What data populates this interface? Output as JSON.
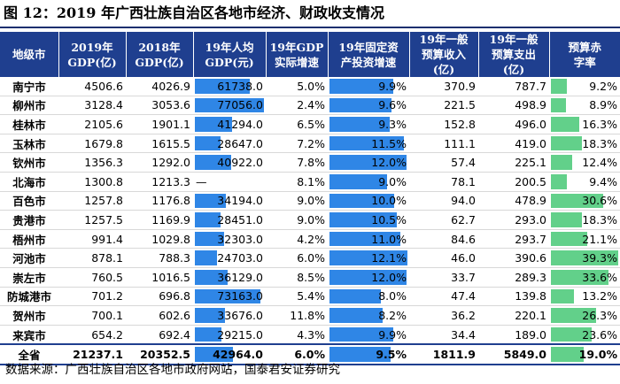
{
  "title": "图 12：2019 年广西壮族自治区各地市经济、财政收支情况",
  "colors": {
    "header": "#1f3f8f",
    "bar_blue": "#2f86e6",
    "bar_green": "#62d08a"
  },
  "columns": [
    "地级市",
    "2019年\nGDP(亿)",
    "2018年\nGDP(亿)",
    "19年人均\nGDP(元)",
    "19年GDP\n实际增速",
    "19年固定资\n产投资增速",
    "19年一般\n预算收入\n(亿)",
    "19年一般\n预算支出\n(亿)",
    "预算赤\n字率"
  ],
  "rows": [
    {
      "city": "南宁市",
      "gdp2019": "4506.6",
      "gdp2018": "4026.9",
      "pc": "61738.0",
      "pc_v": 61738,
      "growth": "5.0%",
      "fai": "9.9%",
      "fai_v": 9.9,
      "rev": "370.9",
      "exp": "787.7",
      "def": "9.2%",
      "def_v": 9.2
    },
    {
      "city": "柳州市",
      "gdp2019": "3128.4",
      "gdp2018": "3053.6",
      "pc": "77056.0",
      "pc_v": 77056,
      "growth": "2.4%",
      "fai": "9.6%",
      "fai_v": 9.6,
      "rev": "221.5",
      "exp": "498.9",
      "def": "8.9%",
      "def_v": 8.9
    },
    {
      "city": "桂林市",
      "gdp2019": "2105.6",
      "gdp2018": "1901.1",
      "pc": "41294.0",
      "pc_v": 41294,
      "growth": "6.5%",
      "fai": "9.3%",
      "fai_v": 9.3,
      "rev": "152.8",
      "exp": "496.0",
      "def": "16.3%",
      "def_v": 16.3
    },
    {
      "city": "玉林市",
      "gdp2019": "1679.8",
      "gdp2018": "1615.5",
      "pc": "28647.0",
      "pc_v": 28647,
      "growth": "7.2%",
      "fai": "11.5%",
      "fai_v": 11.5,
      "rev": "111.1",
      "exp": "419.0",
      "def": "18.3%",
      "def_v": 18.3
    },
    {
      "city": "钦州市",
      "gdp2019": "1356.3",
      "gdp2018": "1292.0",
      "pc": "40922.0",
      "pc_v": 40922,
      "growth": "7.8%",
      "fai": "12.0%",
      "fai_v": 12.0,
      "rev": "57.4",
      "exp": "225.1",
      "def": "12.4%",
      "def_v": 12.4
    },
    {
      "city": "北海市",
      "gdp2019": "1300.8",
      "gdp2018": "1213.3",
      "pc": "—",
      "pc_v": null,
      "growth": "8.1%",
      "fai": "9.0%",
      "fai_v": 9.0,
      "rev": "78.1",
      "exp": "200.5",
      "def": "9.4%",
      "def_v": 9.4
    },
    {
      "city": "百色市",
      "gdp2019": "1257.8",
      "gdp2018": "1176.8",
      "pc": "34194.0",
      "pc_v": 34194,
      "growth": "9.0%",
      "fai": "10.0%",
      "fai_v": 10.0,
      "rev": "94.0",
      "exp": "478.9",
      "def": "30.6%",
      "def_v": 30.6
    },
    {
      "city": "贵港市",
      "gdp2019": "1257.5",
      "gdp2018": "1169.9",
      "pc": "28451.0",
      "pc_v": 28451,
      "growth": "9.0%",
      "fai": "10.5%",
      "fai_v": 10.5,
      "rev": "62.7",
      "exp": "293.0",
      "def": "18.3%",
      "def_v": 18.3
    },
    {
      "city": "梧州市",
      "gdp2019": "991.4",
      "gdp2018": "1029.8",
      "pc": "32303.0",
      "pc_v": 32303,
      "growth": "4.2%",
      "fai": "11.0%",
      "fai_v": 11.0,
      "rev": "84.6",
      "exp": "293.7",
      "def": "21.1%",
      "def_v": 21.1
    },
    {
      "city": "河池市",
      "gdp2019": "878.1",
      "gdp2018": "788.3",
      "pc": "24703.0",
      "pc_v": 24703,
      "growth": "6.0%",
      "fai": "12.1%",
      "fai_v": 12.1,
      "rev": "46.0",
      "exp": "390.6",
      "def": "39.3%",
      "def_v": 39.3
    },
    {
      "city": "崇左市",
      "gdp2019": "760.5",
      "gdp2018": "1016.5",
      "pc": "36129.0",
      "pc_v": 36129,
      "growth": "8.5%",
      "fai": "12.0%",
      "fai_v": 12.0,
      "rev": "33.7",
      "exp": "289.3",
      "def": "33.6%",
      "def_v": 33.6
    },
    {
      "city": "防城港市",
      "gdp2019": "701.2",
      "gdp2018": "696.8",
      "pc": "73163.0",
      "pc_v": 73163,
      "growth": "5.4%",
      "fai": "8.0%",
      "fai_v": 8.0,
      "rev": "47.4",
      "exp": "139.8",
      "def": "13.2%",
      "def_v": 13.2
    },
    {
      "city": "贺州市",
      "gdp2019": "700.1",
      "gdp2018": "602.6",
      "pc": "33676.0",
      "pc_v": 33676,
      "growth": "11.8%",
      "fai": "8.2%",
      "fai_v": 8.2,
      "rev": "36.2",
      "exp": "220.1",
      "def": "26.3%",
      "def_v": 26.3
    },
    {
      "city": "来宾市",
      "gdp2019": "654.2",
      "gdp2018": "692.4",
      "pc": "29215.0",
      "pc_v": 29215,
      "growth": "4.3%",
      "fai": "9.9%",
      "fai_v": 9.9,
      "rev": "34.4",
      "exp": "189.0",
      "def": "23.6%",
      "def_v": 23.6
    }
  ],
  "total": {
    "city": "全省",
    "gdp2019": "21237.1",
    "gdp2018": "20352.5",
    "pc": "42964.0",
    "pc_v": 42964,
    "growth": "6.0%",
    "fai": "9.5%",
    "fai_v": 9.5,
    "rev": "1811.9",
    "exp": "5849.0",
    "def": "19.0%",
    "def_v": 19.0
  },
  "source": "数据来源：广西壮族自治区各地市政府网站，国泰君安证券研究"
}
